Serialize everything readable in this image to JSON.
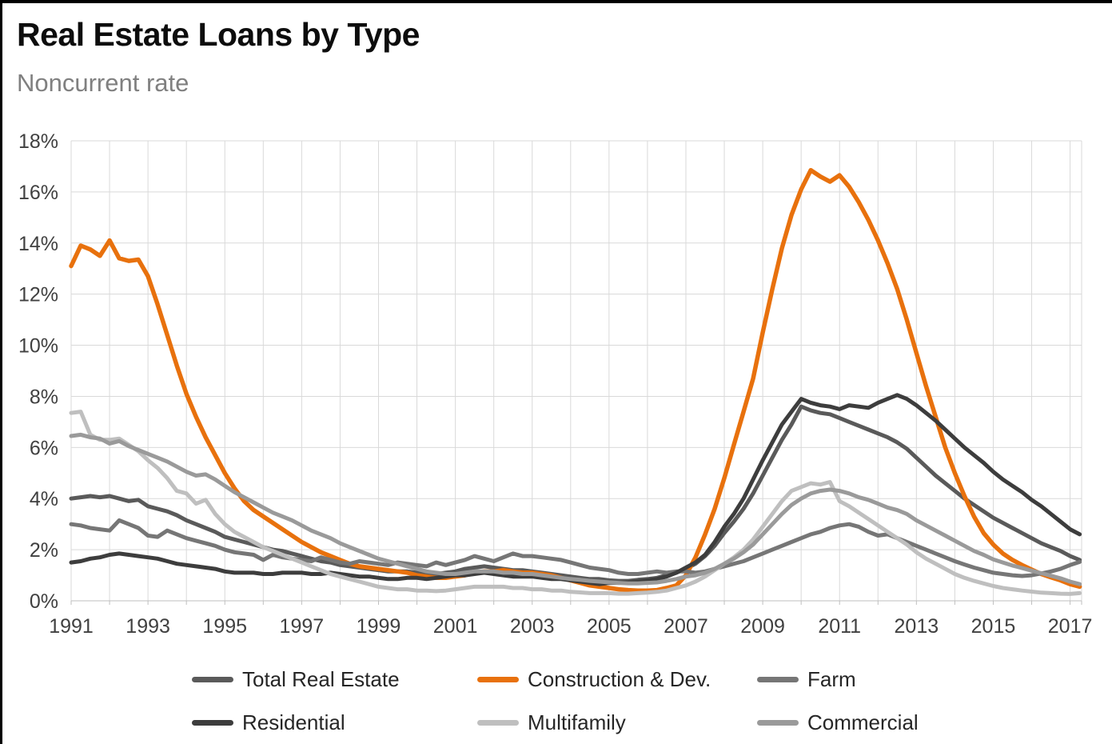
{
  "header": {
    "title": "Real Estate Loans by Type",
    "subtitle": "Noncurrent rate"
  },
  "frame": {
    "border_color": "#000000",
    "background": "#ffffff"
  },
  "chart_data": {
    "type": "line",
    "title": "Real Estate Loans by Type",
    "subtitle": "Noncurrent rate",
    "x_unit": "year (quarterly data)",
    "x_start_year": 1991,
    "x_step_years": 0.25,
    "x_max_year": 2017.3,
    "x_tick_labels": [
      "1991",
      "1993",
      "1995",
      "1997",
      "1999",
      "2001",
      "2003",
      "2005",
      "2007",
      "2009",
      "2011",
      "2013",
      "2015",
      "2017"
    ],
    "y_axis": {
      "min": 0,
      "max": 18,
      "tick_step": 2,
      "tick_labels": [
        "0%",
        "2%",
        "4%",
        "6%",
        "8%",
        "10%",
        "12%",
        "14%",
        "16%",
        "18%"
      ]
    },
    "grid": {
      "show": true,
      "color": "#d9d9d9",
      "axis_color": "#bfbfbf",
      "vertical_every_years": 1
    },
    "legend_position": "bottom",
    "series": [
      {
        "name": "Total Real Estate",
        "color": "#5a5a5a",
        "width": 5,
        "values": [
          4.0,
          4.05,
          4.1,
          4.05,
          4.1,
          4.0,
          3.9,
          3.95,
          3.7,
          3.6,
          3.5,
          3.35,
          3.15,
          3.0,
          2.85,
          2.7,
          2.5,
          2.4,
          2.3,
          2.2,
          2.1,
          2.0,
          1.95,
          1.85,
          1.75,
          1.65,
          1.55,
          1.5,
          1.4,
          1.35,
          1.3,
          1.25,
          1.2,
          1.15,
          1.15,
          1.15,
          1.1,
          1.05,
          1.05,
          1.1,
          1.15,
          1.25,
          1.3,
          1.35,
          1.3,
          1.25,
          1.2,
          1.2,
          1.15,
          1.1,
          1.05,
          1.0,
          0.95,
          0.9,
          0.85,
          0.85,
          0.8,
          0.78,
          0.78,
          0.82,
          0.85,
          0.9,
          1.0,
          1.1,
          1.25,
          1.45,
          1.75,
          2.15,
          2.65,
          3.1,
          3.6,
          4.2,
          4.9,
          5.6,
          6.3,
          6.9,
          7.6,
          7.45,
          7.35,
          7.3,
          7.15,
          7.0,
          6.85,
          6.7,
          6.55,
          6.4,
          6.2,
          5.95,
          5.6,
          5.25,
          4.9,
          4.6,
          4.3,
          4.0,
          3.75,
          3.5,
          3.25,
          3.05,
          2.85,
          2.65,
          2.45,
          2.25,
          2.1,
          1.95,
          1.75,
          1.6
        ]
      },
      {
        "name": "Construction & Dev.",
        "color": "#e8710d",
        "width": 5.5,
        "values": [
          13.1,
          13.9,
          13.75,
          13.5,
          14.1,
          13.4,
          13.3,
          13.35,
          12.7,
          11.6,
          10.4,
          9.2,
          8.1,
          7.2,
          6.4,
          5.7,
          5.0,
          4.4,
          3.9,
          3.55,
          3.3,
          3.05,
          2.8,
          2.55,
          2.3,
          2.1,
          1.9,
          1.75,
          1.6,
          1.45,
          1.35,
          1.3,
          1.25,
          1.2,
          1.15,
          1.1,
          1.0,
          0.95,
          0.9,
          0.9,
          0.95,
          1.0,
          1.1,
          1.15,
          1.15,
          1.2,
          1.15,
          1.1,
          1.1,
          1.05,
          1.0,
          0.9,
          0.8,
          0.7,
          0.6,
          0.55,
          0.5,
          0.45,
          0.42,
          0.4,
          0.4,
          0.42,
          0.5,
          0.6,
          1.0,
          1.7,
          2.6,
          3.6,
          4.8,
          6.1,
          7.4,
          8.7,
          10.5,
          12.2,
          13.8,
          15.1,
          16.1,
          16.85,
          16.6,
          16.4,
          16.65,
          16.2,
          15.6,
          14.9,
          14.1,
          13.2,
          12.2,
          11.0,
          9.7,
          8.4,
          7.2,
          6.0,
          5.0,
          4.1,
          3.3,
          2.65,
          2.2,
          1.85,
          1.6,
          1.4,
          1.22,
          1.05,
          0.92,
          0.8,
          0.65,
          0.55
        ]
      },
      {
        "name": "Farm",
        "color": "#767676",
        "width": 5,
        "values": [
          3.0,
          2.95,
          2.85,
          2.8,
          2.75,
          3.15,
          3.0,
          2.85,
          2.55,
          2.5,
          2.75,
          2.6,
          2.45,
          2.35,
          2.25,
          2.15,
          2.0,
          1.9,
          1.85,
          1.8,
          1.6,
          1.8,
          1.7,
          1.65,
          1.6,
          1.55,
          1.7,
          1.6,
          1.5,
          1.45,
          1.55,
          1.5,
          1.45,
          1.4,
          1.5,
          1.45,
          1.4,
          1.35,
          1.5,
          1.4,
          1.5,
          1.6,
          1.75,
          1.65,
          1.55,
          1.7,
          1.85,
          1.75,
          1.75,
          1.7,
          1.65,
          1.6,
          1.5,
          1.4,
          1.3,
          1.25,
          1.2,
          1.1,
          1.05,
          1.05,
          1.1,
          1.15,
          1.1,
          1.15,
          1.15,
          1.1,
          1.15,
          1.25,
          1.35,
          1.45,
          1.55,
          1.7,
          1.85,
          2.0,
          2.15,
          2.3,
          2.45,
          2.6,
          2.7,
          2.85,
          2.95,
          3.0,
          2.9,
          2.7,
          2.55,
          2.6,
          2.45,
          2.3,
          2.15,
          2.0,
          1.85,
          1.7,
          1.55,
          1.42,
          1.3,
          1.2,
          1.1,
          1.05,
          1.0,
          0.97,
          1.0,
          1.07,
          1.15,
          1.25,
          1.4,
          1.52
        ]
      },
      {
        "name": "Residential",
        "color": "#3d3d3d",
        "width": 5,
        "values": [
          1.5,
          1.55,
          1.65,
          1.7,
          1.8,
          1.85,
          1.8,
          1.75,
          1.7,
          1.65,
          1.55,
          1.45,
          1.4,
          1.35,
          1.3,
          1.25,
          1.15,
          1.1,
          1.1,
          1.1,
          1.05,
          1.05,
          1.1,
          1.1,
          1.1,
          1.05,
          1.05,
          1.1,
          1.05,
          1.0,
          0.95,
          0.95,
          0.9,
          0.85,
          0.85,
          0.9,
          0.9,
          0.85,
          0.9,
          0.95,
          1.0,
          1.0,
          1.05,
          1.1,
          1.05,
          1.0,
          0.95,
          0.95,
          0.95,
          0.9,
          0.85,
          0.85,
          0.8,
          0.75,
          0.7,
          0.65,
          0.7,
          0.7,
          0.72,
          0.75,
          0.8,
          0.85,
          0.95,
          1.1,
          1.3,
          1.5,
          1.8,
          2.3,
          2.9,
          3.4,
          4.0,
          4.75,
          5.5,
          6.2,
          6.9,
          7.4,
          7.9,
          7.75,
          7.65,
          7.6,
          7.5,
          7.65,
          7.6,
          7.55,
          7.75,
          7.9,
          8.05,
          7.9,
          7.65,
          7.35,
          7.05,
          6.7,
          6.35,
          6.0,
          5.7,
          5.4,
          5.05,
          4.75,
          4.5,
          4.25,
          3.95,
          3.7,
          3.4,
          3.1,
          2.8,
          2.6
        ]
      },
      {
        "name": "Multifamily",
        "color": "#bfbfbf",
        "width": 5,
        "values": [
          7.35,
          7.4,
          6.5,
          6.3,
          6.3,
          6.35,
          6.1,
          5.85,
          5.5,
          5.2,
          4.8,
          4.3,
          4.2,
          3.8,
          3.95,
          3.4,
          3.0,
          2.7,
          2.5,
          2.3,
          2.1,
          1.95,
          1.8,
          1.65,
          1.5,
          1.35,
          1.2,
          1.05,
          0.95,
          0.85,
          0.75,
          0.65,
          0.55,
          0.5,
          0.45,
          0.45,
          0.4,
          0.4,
          0.38,
          0.4,
          0.45,
          0.5,
          0.55,
          0.55,
          0.55,
          0.55,
          0.5,
          0.5,
          0.45,
          0.45,
          0.4,
          0.4,
          0.35,
          0.33,
          0.3,
          0.3,
          0.3,
          0.28,
          0.28,
          0.3,
          0.32,
          0.35,
          0.4,
          0.5,
          0.6,
          0.75,
          0.95,
          1.2,
          1.45,
          1.7,
          2.0,
          2.4,
          2.9,
          3.4,
          3.9,
          4.3,
          4.45,
          4.6,
          4.55,
          4.65,
          3.9,
          3.7,
          3.45,
          3.2,
          2.95,
          2.7,
          2.45,
          2.2,
          1.9,
          1.65,
          1.45,
          1.25,
          1.05,
          0.9,
          0.78,
          0.68,
          0.58,
          0.5,
          0.45,
          0.4,
          0.36,
          0.32,
          0.3,
          0.28,
          0.27,
          0.3
        ]
      },
      {
        "name": "Commercial",
        "color": "#9a9a9a",
        "width": 5,
        "values": [
          6.45,
          6.5,
          6.4,
          6.35,
          6.15,
          6.25,
          6.05,
          5.9,
          5.75,
          5.6,
          5.45,
          5.25,
          5.05,
          4.9,
          4.95,
          4.75,
          4.5,
          4.25,
          4.05,
          3.85,
          3.65,
          3.45,
          3.3,
          3.15,
          2.95,
          2.75,
          2.6,
          2.45,
          2.25,
          2.1,
          1.95,
          1.8,
          1.65,
          1.55,
          1.45,
          1.35,
          1.25,
          1.15,
          1.1,
          1.05,
          1.05,
          1.1,
          1.15,
          1.15,
          1.15,
          1.1,
          1.1,
          1.05,
          1.05,
          1.0,
          0.95,
          0.9,
          0.85,
          0.82,
          0.78,
          0.75,
          0.72,
          0.7,
          0.68,
          0.68,
          0.7,
          0.72,
          0.78,
          0.85,
          0.95,
          1.0,
          1.1,
          1.25,
          1.45,
          1.65,
          1.9,
          2.2,
          2.6,
          3.0,
          3.4,
          3.75,
          4.0,
          4.2,
          4.3,
          4.35,
          4.3,
          4.2,
          4.05,
          3.95,
          3.8,
          3.65,
          3.55,
          3.4,
          3.15,
          2.95,
          2.75,
          2.55,
          2.35,
          2.15,
          1.95,
          1.8,
          1.62,
          1.5,
          1.38,
          1.28,
          1.18,
          1.08,
          0.98,
          0.88,
          0.75,
          0.65
        ]
      }
    ]
  }
}
